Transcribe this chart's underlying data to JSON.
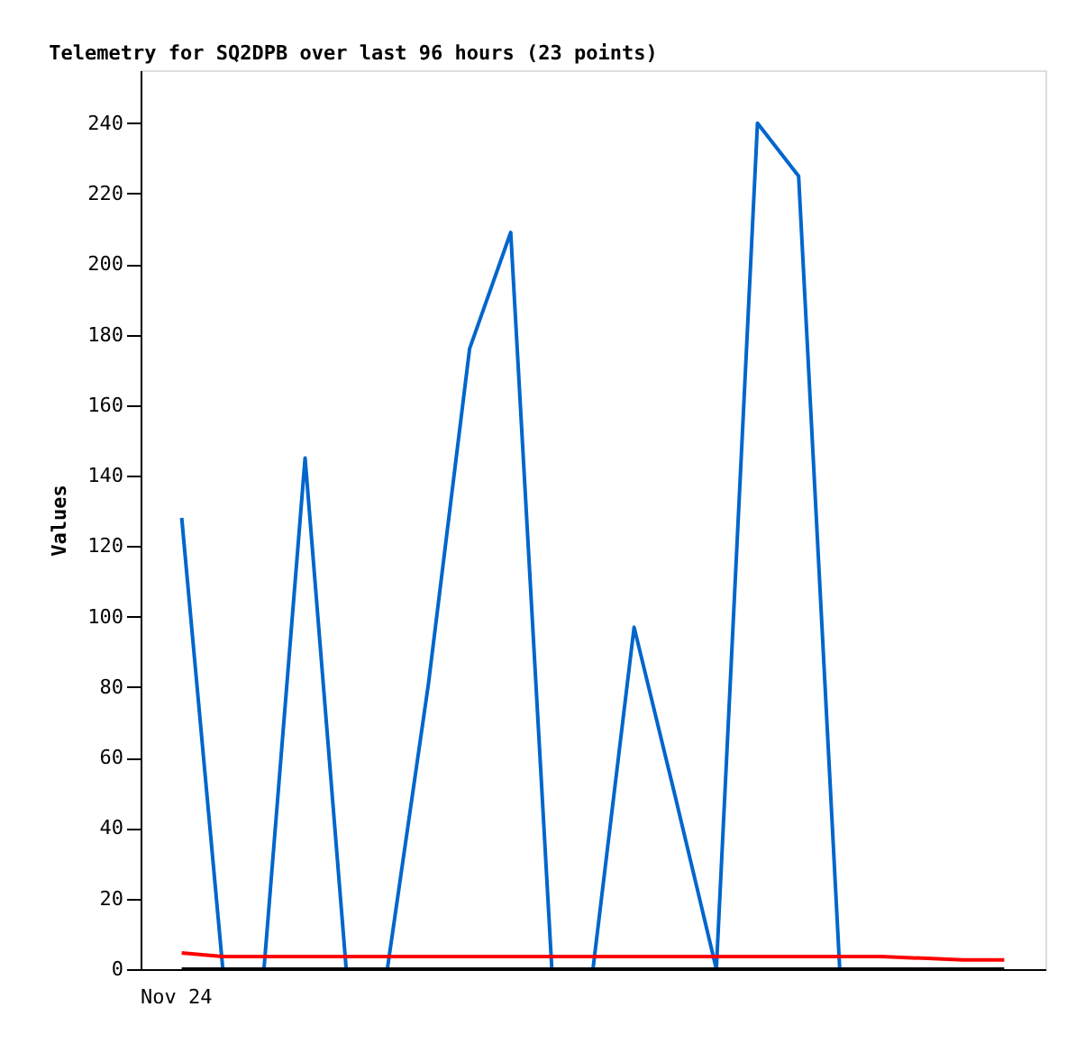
{
  "chart_data": {
    "type": "line",
    "title": "Telemetry for SQ2DPB over last 96 hours (23 points)",
    "ylabel": "Values",
    "annotations": [
      "Nov 24"
    ],
    "categories": [
      null,
      null,
      null,
      null,
      null,
      null,
      null,
      null,
      null,
      null,
      null,
      null,
      null,
      null,
      null,
      null,
      null,
      null,
      null,
      null,
      null
    ],
    "ylim": [
      0,
      255
    ],
    "yticks": [
      0,
      20,
      40,
      60,
      80,
      100,
      120,
      140,
      160,
      180,
      200,
      220,
      240
    ],
    "grid": false,
    "legend": false,
    "marker": "none",
    "line_style": "solid",
    "tick_labels": "y",
    "series": [
      {
        "color": "#0066cc",
        "values": [
          128,
          0,
          0,
          145,
          0,
          0,
          81,
          176,
          209,
          0,
          0,
          97,
          49,
          0,
          240,
          225,
          0,
          null,
          null,
          null,
          null
        ]
      },
      {
        "color": "#ff0000",
        "values": [
          4.6,
          3.6,
          3.6,
          3.6,
          3.6,
          3.6,
          3.6,
          3.6,
          3.6,
          3.6,
          3.6,
          3.6,
          3.6,
          3.6,
          3.6,
          3.6,
          3.6,
          3.6,
          3.1,
          2.6,
          2.6
        ]
      },
      {
        "color": "#000000",
        "values": [
          0,
          0,
          0,
          0,
          0,
          0,
          0,
          0,
          0,
          0,
          0,
          0,
          0,
          0,
          0,
          0,
          0,
          0,
          0,
          0,
          0
        ]
      }
    ]
  }
}
